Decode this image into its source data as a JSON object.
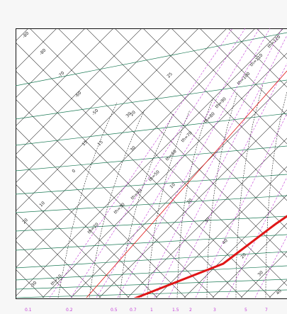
{
  "diagram": {
    "bottom_axis_ticks": [
      "0.1",
      "0.2",
      "0.5",
      "0.7",
      "1",
      "1.5",
      "2",
      "3",
      "5",
      "7"
    ],
    "left_labels": [
      "-80",
      "-80",
      "-70",
      "-60",
      "-50",
      "30",
      "15",
      "0",
      "10",
      "20",
      "-10",
      "0",
      "-30"
    ],
    "top_labels": [
      "th=120",
      "th=110",
      "th=100",
      "th=90",
      "th=80",
      "th=70",
      "th=60",
      "th=50",
      "th=40",
      "th=30",
      "th=20",
      "th=10"
    ],
    "mix_labels": [
      "15",
      "25",
      "20",
      "30",
      "15",
      "10",
      "0",
      "20",
      "30",
      "40",
      "50",
      "20",
      "30",
      "40"
    ],
    "colors": {
      "isotherm": "#111111",
      "dry_adiabat": "#1b7a55",
      "mixing_ratio": "#c23bd7",
      "moist_adiabat": "#111111",
      "profile": "#e01616",
      "reference": "#e01616"
    }
  }
}
